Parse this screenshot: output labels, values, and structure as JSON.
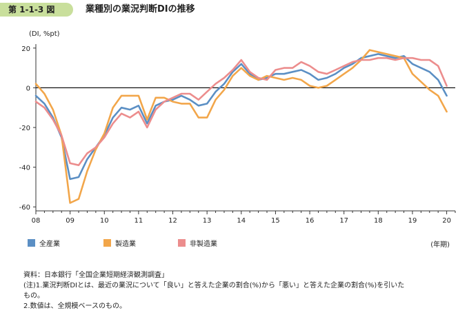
{
  "figure": {
    "number": "第 1-1-3 図",
    "title": "業種別の業況判断DIの推移"
  },
  "colors": {
    "all": "#5b8fc4",
    "manufacturing": "#f2a64a",
    "non_manufacturing": "#ec8d8d",
    "badge": "#c9df9c"
  },
  "chart_data": {
    "type": "line",
    "title": "業種別の業況判断DIの推移",
    "ylabel": "(DI, %pt)",
    "xlabel": "(年期)",
    "ylim": [
      -62,
      22
    ],
    "yticks": [
      20,
      0,
      -20,
      -40,
      -60
    ],
    "xlim": [
      0,
      49
    ],
    "year_ticks": [
      {
        "label": "08",
        "x": 0
      },
      {
        "label": "09",
        "x": 4
      },
      {
        "label": "10",
        "x": 8
      },
      {
        "label": "11",
        "x": 12
      },
      {
        "label": "12",
        "x": 16
      },
      {
        "label": "13",
        "x": 20
      },
      {
        "label": "14",
        "x": 24
      },
      {
        "label": "15",
        "x": 28
      },
      {
        "label": "16",
        "x": 32
      },
      {
        "label": "17",
        "x": 36
      },
      {
        "label": "18",
        "x": 40
      },
      {
        "label": "19",
        "x": 44
      },
      {
        "label": "20",
        "x": 48
      }
    ],
    "series": [
      {
        "name": "全産業",
        "key": "all",
        "values": [
          -4,
          -8,
          -15,
          -25,
          -46,
          -45,
          -36,
          -30,
          -24,
          -15,
          -10,
          -11,
          -9,
          -18,
          -9,
          -7,
          -6,
          -4,
          -6,
          -9,
          -8,
          -2,
          2,
          8,
          12,
          7,
          4,
          5,
          7,
          7,
          8,
          9,
          7,
          4,
          5,
          7,
          10,
          12,
          15,
          16,
          17,
          16,
          15,
          16,
          12,
          10,
          8,
          4,
          -4
        ]
      },
      {
        "name": "製造業",
        "key": "manufacturing",
        "values": [
          2,
          -3,
          -11,
          -24,
          -58,
          -56,
          -42,
          -31,
          -23,
          -10,
          -4,
          -4,
          -4,
          -16,
          -5,
          -5,
          -7,
          -8,
          -8,
          -15,
          -15,
          -6,
          -1,
          6,
          10,
          6,
          4,
          6,
          5,
          4,
          5,
          4,
          1,
          0,
          1,
          4,
          7,
          10,
          14,
          19,
          18,
          17,
          16,
          15,
          7,
          3,
          -1,
          -4,
          -12
        ]
      },
      {
        "name": "非製造業",
        "key": "non_manufacturing",
        "values": [
          -7,
          -10,
          -16,
          -24,
          -38,
          -39,
          -33,
          -30,
          -25,
          -18,
          -13,
          -15,
          -12,
          -20,
          -11,
          -7,
          -5,
          -3,
          -3,
          -6,
          -2,
          2,
          5,
          9,
          14,
          8,
          5,
          4,
          9,
          10,
          10,
          13,
          11,
          8,
          7,
          9,
          11,
          13,
          14,
          14,
          15,
          15,
          14,
          15,
          15,
          14,
          14,
          11,
          1
        ]
      }
    ],
    "zero_line": true
  },
  "notes": {
    "source": "資料：日本銀行「全国企業短期経済観測調査」",
    "note1_line1": "(注)1.業況判断DIとは、最近の業況について「良い」と答えた企業の割合(%)から「悪い」と答えた企業の割合(%)を引いた",
    "note1_line2": "もの。",
    "note2": "2.数値は、全規模ベースのもの。"
  }
}
